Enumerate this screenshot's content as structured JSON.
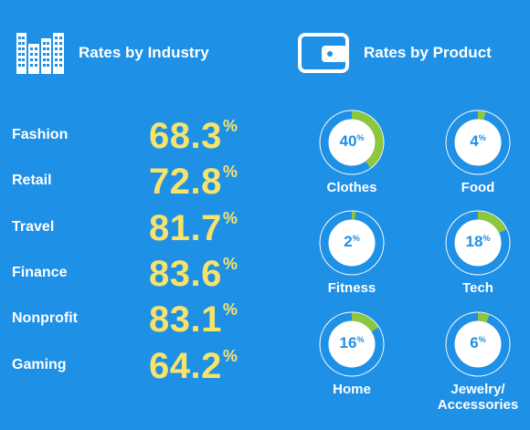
{
  "industry_title": "Rates by Industry",
  "product_title": "Rates by Product",
  "colors": {
    "background": "#1e90e6",
    "value_yellow": "#f7e36a",
    "ring_green": "#8dc63f",
    "ring_white": "#ffffff",
    "ring_fill": "#1e90e6"
  },
  "icons": [
    "buildings-icon",
    "wallet-icon"
  ],
  "chart_data": [
    {
      "type": "table",
      "title": "Rates by Industry",
      "categories": [
        "Fashion",
        "Retail",
        "Travel",
        "Finance",
        "Nonprofit",
        "Gaming"
      ],
      "values": [
        "68.3",
        "72.8",
        "81.7",
        "83.6",
        "83.1",
        "64.2"
      ],
      "unit": "%"
    },
    {
      "type": "pie",
      "title": "Rates by Product",
      "categories": [
        "Clothes",
        "Food",
        "Fitness",
        "Tech",
        "Home",
        "Jewelry/ Accessories"
      ],
      "values": [
        40,
        4,
        2,
        18,
        16,
        6
      ],
      "unit": "%"
    }
  ]
}
